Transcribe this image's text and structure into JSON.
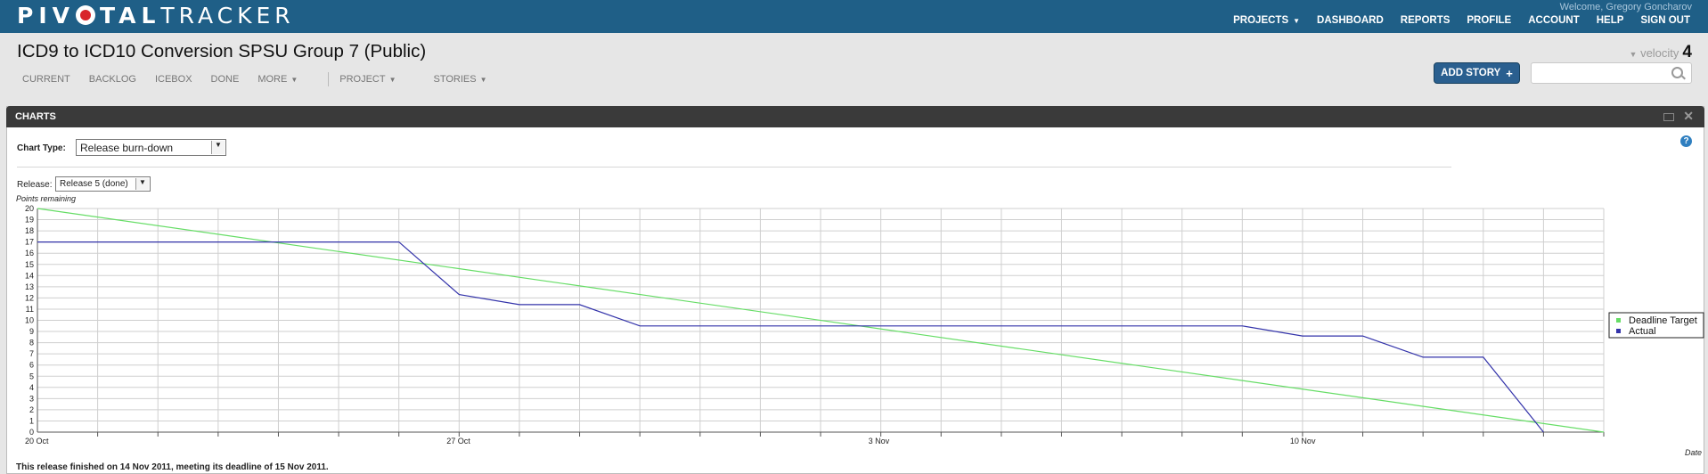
{
  "header": {
    "logo_bold": "PIV",
    "logo_bold2": "TAL",
    "logo_thin": "TRACKER",
    "welcome": "Welcome, Gregory Goncharov",
    "nav": [
      "PROJECTS",
      "DASHBOARD",
      "REPORTS",
      "PROFILE",
      "ACCOUNT",
      "HELP",
      "SIGN OUT"
    ]
  },
  "project": {
    "title": "ICD9 to ICD10 Conversion SPSU Group 7 (Public)",
    "tabs": [
      "CURRENT",
      "BACKLOG",
      "ICEBOX",
      "DONE",
      "MORE"
    ],
    "menus": [
      "PROJECT",
      "STORIES"
    ],
    "velocity_label": "velocity",
    "velocity_value": "4",
    "add_story_label": "ADD STORY",
    "search_placeholder": ""
  },
  "panel": {
    "title": "CHARTS",
    "chart_type_label": "Chart Type:",
    "chart_type_value": "Release burn-down",
    "release_label": "Release:",
    "release_value": "Release 5 (done)",
    "footer": "This release finished on 14 Nov 2011, meeting its deadline of 15 Nov 2011."
  },
  "chart_data": {
    "type": "line",
    "title": "",
    "ylabel": "Points remaining",
    "xlabel": "Date",
    "ylim": [
      0,
      20
    ],
    "yticks": [
      0,
      1,
      2,
      3,
      4,
      5,
      6,
      7,
      8,
      9,
      10,
      11,
      12,
      13,
      14,
      15,
      16,
      17,
      18,
      19,
      20
    ],
    "xlim": [
      "2011-10-20",
      "2011-11-15"
    ],
    "xtick_labels": [
      {
        "date": "2011-10-20",
        "label": "20 Oct"
      },
      {
        "date": "2011-10-27",
        "label": "27 Oct"
      },
      {
        "date": "2011-11-03",
        "label": "3 Nov"
      },
      {
        "date": "2011-11-10",
        "label": "10 Nov"
      }
    ],
    "grid": true,
    "legend_position": "right",
    "series": [
      {
        "name": "Deadline Target",
        "color": "#66dd66",
        "points": [
          [
            "2011-10-20",
            20
          ],
          [
            "2011-11-15",
            0
          ]
        ]
      },
      {
        "name": "Actual",
        "color": "#3333aa",
        "points": [
          [
            "2011-10-20",
            17
          ],
          [
            "2011-10-26",
            17
          ],
          [
            "2011-10-27",
            12.3
          ],
          [
            "2011-10-28",
            11.4
          ],
          [
            "2011-10-29",
            11.4
          ],
          [
            "2011-10-30",
            9.5
          ],
          [
            "2011-11-09",
            9.5
          ],
          [
            "2011-11-10",
            8.6
          ],
          [
            "2011-11-11",
            8.6
          ],
          [
            "2011-11-12",
            6.7
          ],
          [
            "2011-11-13",
            6.7
          ],
          [
            "2011-11-14",
            0
          ]
        ]
      }
    ]
  }
}
